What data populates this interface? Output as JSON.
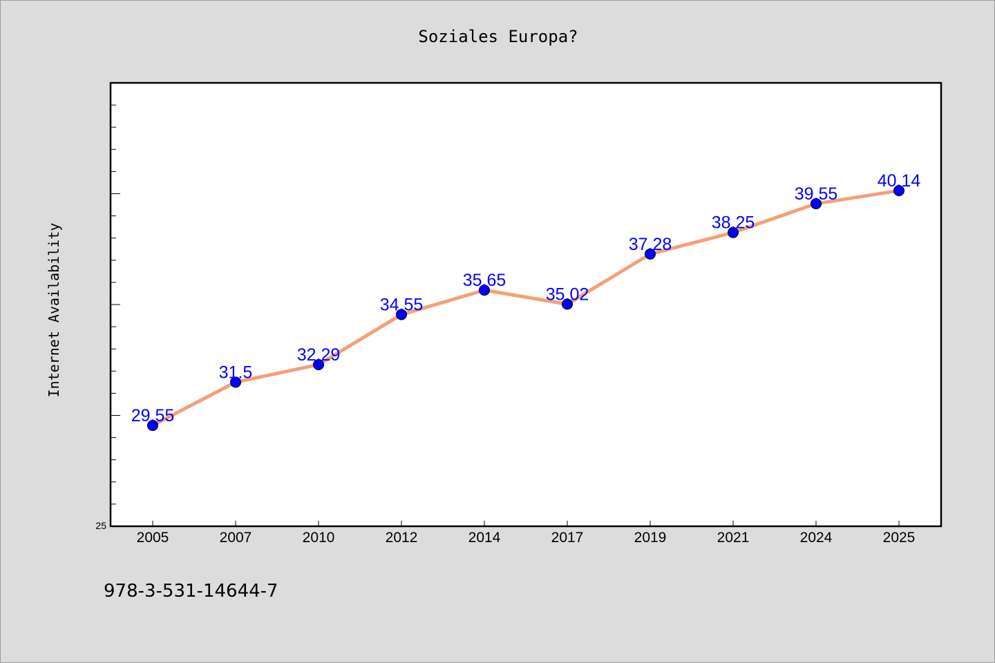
{
  "colors": {
    "line": "#f4a07a",
    "marker": "#0000ff",
    "label": "#0000ff",
    "background": "#dcdcdc",
    "plot_background": "#ffffff"
  },
  "chart_data": {
    "type": "line",
    "title": "Soziales Europa?",
    "xlabel": "",
    "ylabel": "Internet Availability",
    "categories": [
      "2005",
      "2007",
      "2010",
      "2012",
      "2014",
      "2017",
      "2019",
      "2021",
      "2024",
      "2025"
    ],
    "values": [
      29.55,
      31.5,
      32.29,
      34.55,
      35.65,
      35.02,
      37.28,
      38.25,
      39.55,
      40.14
    ],
    "data_labels": [
      "29.55",
      "31.5",
      "32.29",
      "34.55",
      "35.65",
      "35.02",
      "37.28",
      "38.25",
      "39.55",
      "40.14"
    ],
    "ylim": [
      25,
      45
    ],
    "ytick_labels": [
      "25"
    ],
    "grid": false,
    "legend": "none"
  },
  "footer": {
    "isbn": "978-3-531-14644-7"
  }
}
